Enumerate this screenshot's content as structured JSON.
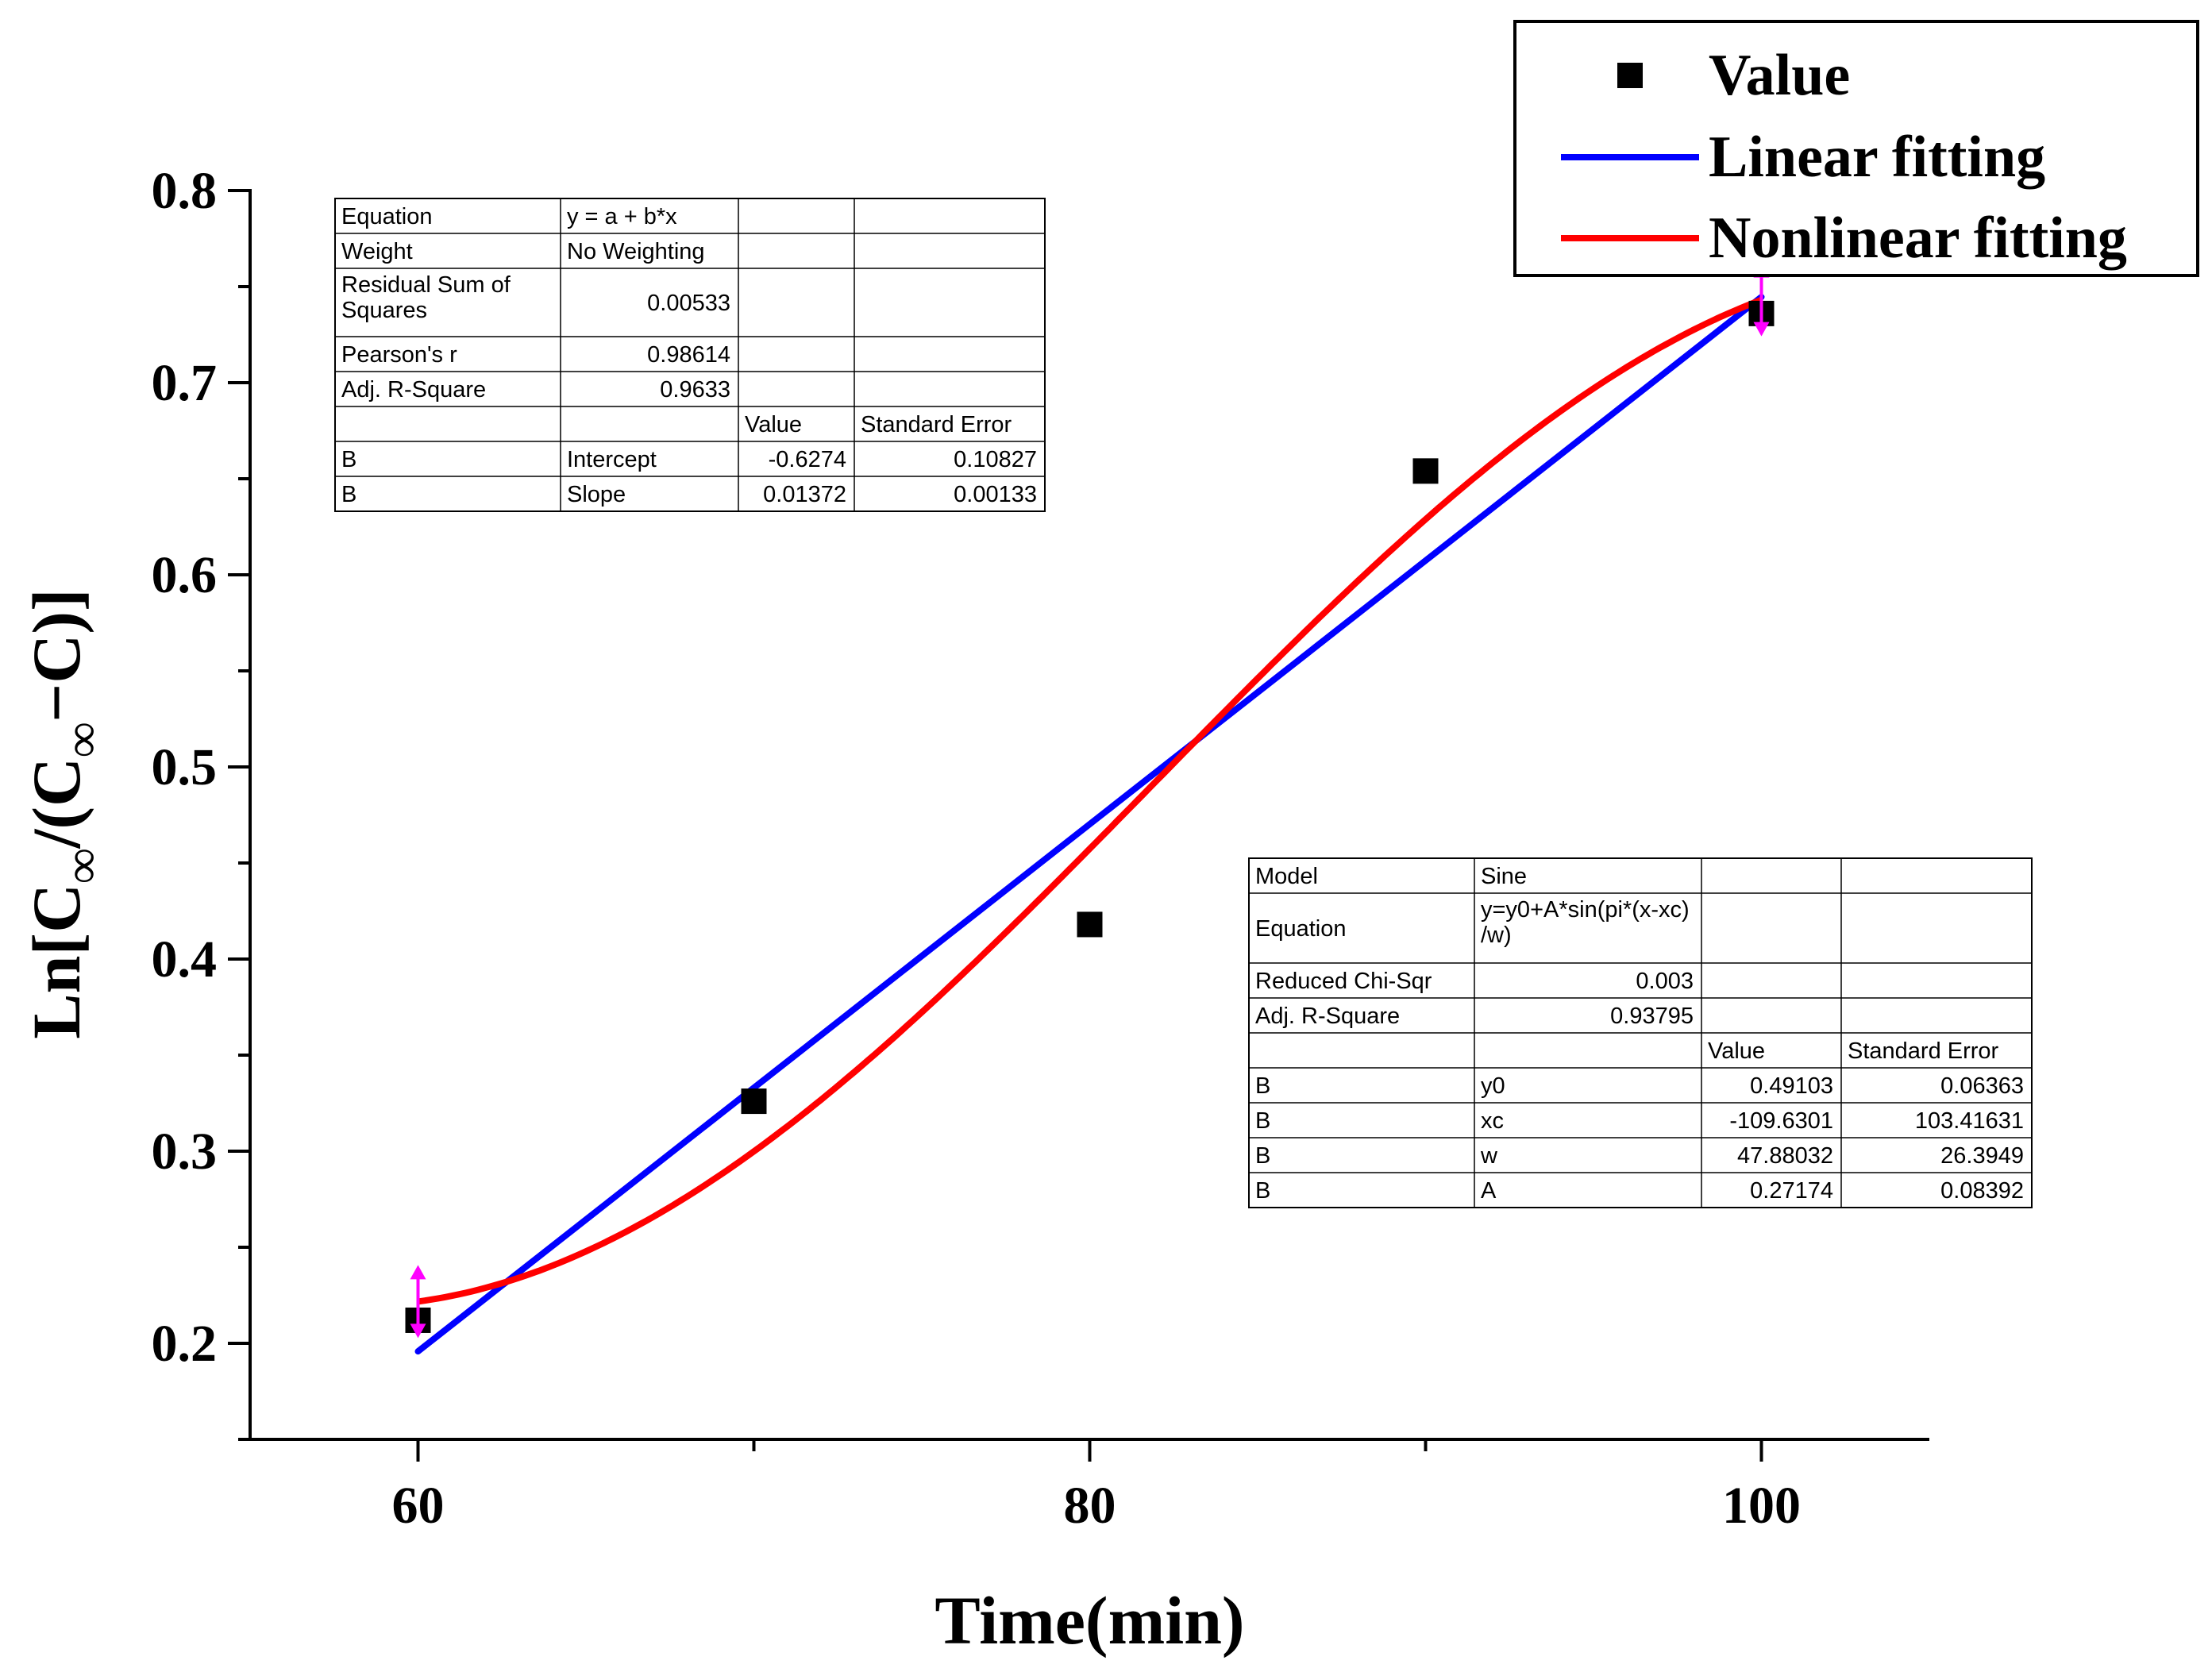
{
  "chart_data": {
    "type": "scatter",
    "xlabel": "Time(min)",
    "ylabel": {
      "prefix": "Ln[C",
      "sub": "∞",
      "mid": "/(C",
      "tail": "−C)]"
    },
    "xlim": [
      55,
      105
    ],
    "ylim": [
      0.15,
      0.8
    ],
    "xticks": [
      60,
      80,
      100
    ],
    "xtick_labels": [
      "60",
      "80",
      "100"
    ],
    "xminor": [
      70,
      90
    ],
    "yticks": [
      0.2,
      0.3,
      0.4,
      0.5,
      0.6,
      0.7,
      0.8
    ],
    "ytick_labels": [
      "0.2",
      "0.3",
      "0.4",
      "0.5",
      "0.6",
      "0.7",
      "0.8"
    ],
    "grid": false,
    "legend_position": "top-right",
    "legend": [
      {
        "label": "Value",
        "kind": "marker",
        "color": "#000000"
      },
      {
        "label": "Linear fitting",
        "kind": "line",
        "color": "#0000ff"
      },
      {
        "label": "Nonlinear fitting",
        "kind": "line",
        "color": "#ff0000"
      }
    ],
    "points": {
      "name": "Value",
      "x": [
        60,
        70,
        80,
        90,
        100
      ],
      "y": [
        0.212,
        0.326,
        0.418,
        0.654,
        0.736
      ]
    },
    "linear_fit": {
      "name": "Linear fitting",
      "intercept": -0.6274,
      "slope": 0.01372,
      "x_range": [
        60,
        100
      ],
      "color": "#0000ff"
    },
    "nonlinear_fit": {
      "name": "Nonlinear fitting",
      "model": "sine",
      "y0": 0.49103,
      "xc": -109.6301,
      "w": 47.88032,
      "A": 0.27174,
      "x_range": [
        60,
        100
      ],
      "color": "#ff0000"
    },
    "handle_color": "#ff00ff",
    "handles_x": [
      60,
      100
    ],
    "tables": [
      {
        "position": "top-left",
        "rows": [
          [
            "Equation",
            "y = a + b*x",
            "",
            ""
          ],
          [
            "Weight",
            "No Weighting",
            "",
            ""
          ],
          [
            "Residual Sum of Squares",
            "0.00533",
            "",
            ""
          ],
          [
            "Pearson's r",
            "0.98614",
            "",
            ""
          ],
          [
            "Adj. R-Square",
            "0.9633",
            "",
            ""
          ],
          [
            "",
            "",
            "Value",
            "Standard Error"
          ],
          [
            "B",
            "Intercept",
            "-0.6274",
            "0.10827"
          ],
          [
            "B",
            "Slope",
            "0.01372",
            "0.00133"
          ]
        ]
      },
      {
        "position": "bottom-right",
        "rows": [
          [
            "Model",
            "Sine",
            "",
            ""
          ],
          [
            "Equation",
            "y=y0+A*sin(pi*(x-xc)/w)",
            "",
            ""
          ],
          [
            "Reduced Chi-Sqr",
            "0.003",
            "",
            ""
          ],
          [
            "Adj. R-Square",
            "0.93795",
            "",
            ""
          ],
          [
            "",
            "",
            "Value",
            "Standard Error"
          ],
          [
            "B",
            "y0",
            "0.49103",
            "0.06363"
          ],
          [
            "B",
            "xc",
            "-109.6301",
            "103.41631"
          ],
          [
            "B",
            "w",
            "47.88032",
            "26.3949"
          ],
          [
            "B",
            "A",
            "0.27174",
            "0.08392"
          ]
        ]
      }
    ]
  }
}
